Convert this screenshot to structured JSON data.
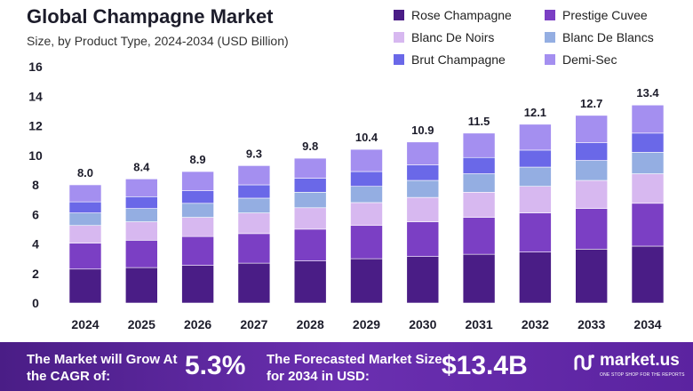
{
  "header": {
    "title": "Global Champagne Market",
    "subtitle": "Size, by Product Type, 2024-2034 (USD Billion)"
  },
  "chart_data": {
    "type": "bar",
    "stacked": true,
    "categories": [
      "2024",
      "2025",
      "2026",
      "2027",
      "2028",
      "2029",
      "2030",
      "2031",
      "2032",
      "2033",
      "2034"
    ],
    "totals": [
      "8.0",
      "8.4",
      "8.9",
      "9.3",
      "9.8",
      "10.4",
      "10.9",
      "11.5",
      "12.1",
      "12.7",
      "13.4"
    ],
    "ylim": [
      0,
      16
    ],
    "yticks": [
      "0",
      "2",
      "4",
      "6",
      "8",
      "10",
      "12",
      "14",
      "16"
    ],
    "legend_position": "top-right",
    "series": [
      {
        "name": "Rose Champagne",
        "color": "#4a1d86",
        "values": [
          2.3,
          2.4,
          2.55,
          2.7,
          2.85,
          3.0,
          3.15,
          3.3,
          3.45,
          3.65,
          3.85
        ]
      },
      {
        "name": "Prestige Cuvee",
        "color": "#7b3fc4",
        "values": [
          1.75,
          1.85,
          1.95,
          2.0,
          2.15,
          2.25,
          2.35,
          2.5,
          2.65,
          2.75,
          2.9
        ]
      },
      {
        "name": "Blanc De Noirs",
        "color": "#d7b8f0",
        "values": [
          1.2,
          1.25,
          1.3,
          1.4,
          1.45,
          1.55,
          1.65,
          1.7,
          1.8,
          1.9,
          2.0
        ]
      },
      {
        "name": "Blanc De Blancs",
        "color": "#94aee2",
        "values": [
          0.85,
          0.9,
          0.95,
          1.0,
          1.05,
          1.1,
          1.15,
          1.25,
          1.3,
          1.35,
          1.45
        ]
      },
      {
        "name": "Brut Champagne",
        "color": "#6a68e8",
        "values": [
          0.75,
          0.8,
          0.85,
          0.9,
          0.95,
          1.0,
          1.05,
          1.1,
          1.15,
          1.2,
          1.3
        ]
      },
      {
        "name": "Demi-Sec",
        "color": "#a48ff0",
        "values": [
          1.15,
          1.2,
          1.3,
          1.3,
          1.35,
          1.5,
          1.55,
          1.65,
          1.75,
          1.85,
          1.9
        ]
      }
    ]
  },
  "banner": {
    "cagr_label": "The Market will Grow At the CAGR of:",
    "cagr_value": "5.3%",
    "forecast_label": "The Forecasted Market Size for 2034 in USD:",
    "forecast_value": "$13.4B",
    "brand_name": "market.us",
    "brand_tagline": "ONE STOP SHOP FOR THE REPORTS"
  }
}
